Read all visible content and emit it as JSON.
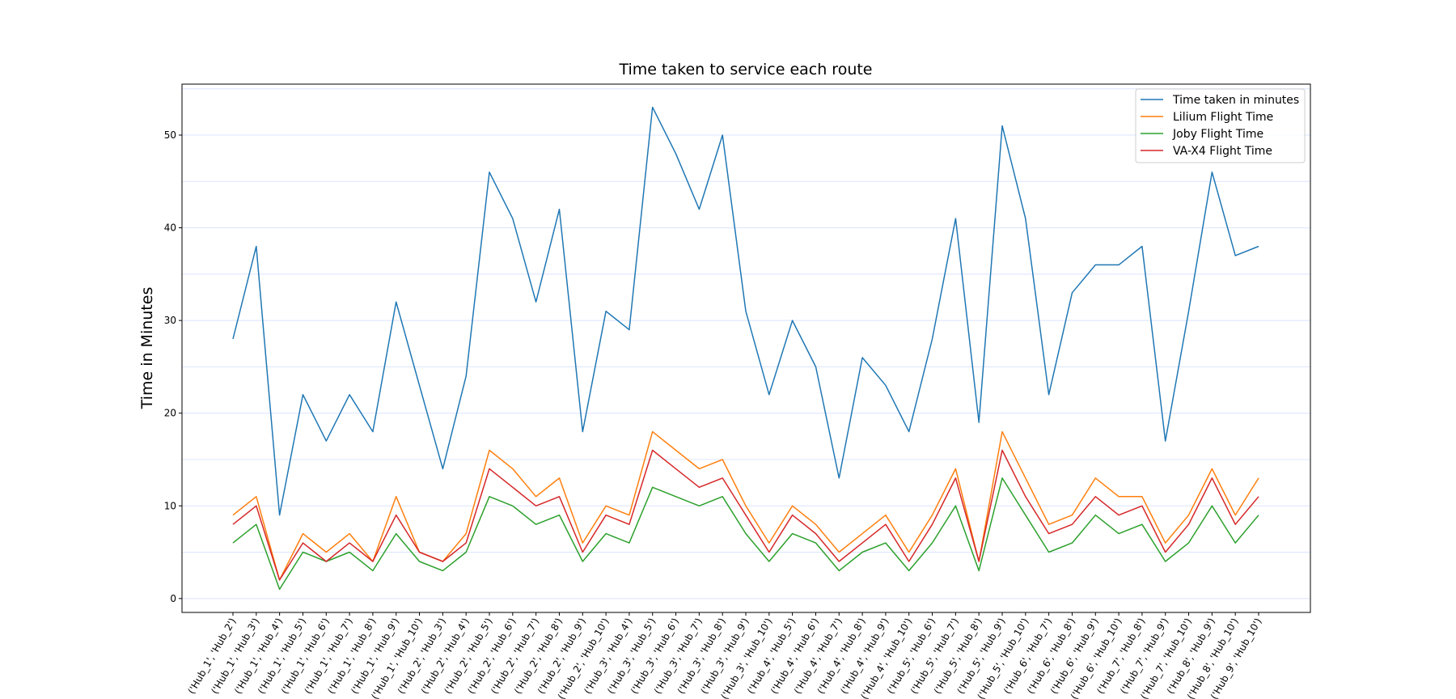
{
  "chart_data": {
    "type": "line",
    "title": "Time taken to service each route",
    "xlabel": "",
    "ylabel": "Time in Minutes",
    "ylim": [
      -1.5,
      55.5
    ],
    "yticks": [
      0,
      10,
      20,
      30,
      40,
      50
    ],
    "grid": "horizontal",
    "legend_position": "top-right",
    "categories": [
      "('Hub_1', 'Hub_2')",
      "('Hub_1', 'Hub_3')",
      "('Hub_1', 'Hub_4')",
      "('Hub_1', 'Hub_5')",
      "('Hub_1', 'Hub_6')",
      "('Hub_1', 'Hub_7')",
      "('Hub_1', 'Hub_8')",
      "('Hub_1', 'Hub_9')",
      "('Hub_1', 'Hub_10')",
      "('Hub_2', 'Hub_3')",
      "('Hub_2', 'Hub_4')",
      "('Hub_2', 'Hub_5')",
      "('Hub_2', 'Hub_6')",
      "('Hub_2', 'Hub_7')",
      "('Hub_2', 'Hub_8')",
      "('Hub_2', 'Hub_9')",
      "('Hub_2', 'Hub_10')",
      "('Hub_3', 'Hub_4')",
      "('Hub_3', 'Hub_5')",
      "('Hub_3', 'Hub_6')",
      "('Hub_3', 'Hub_7')",
      "('Hub_3', 'Hub_8')",
      "('Hub_3', 'Hub_9')",
      "('Hub_3', 'Hub_10')",
      "('Hub_4', 'Hub_5')",
      "('Hub_4', 'Hub_6')",
      "('Hub_4', 'Hub_7')",
      "('Hub_4', 'Hub_8')",
      "('Hub_4', 'Hub_9')",
      "('Hub_4', 'Hub_10')",
      "('Hub_5', 'Hub_6')",
      "('Hub_5', 'Hub_7')",
      "('Hub_5', 'Hub_8')",
      "('Hub_5', 'Hub_9')",
      "('Hub_5', 'Hub_10')",
      "('Hub_6', 'Hub_7')",
      "('Hub_6', 'Hub_8')",
      "('Hub_6', 'Hub_9')",
      "('Hub_6', 'Hub_10')",
      "('Hub_7', 'Hub_8')",
      "('Hub_7', 'Hub_9')",
      "('Hub_7', 'Hub_10')",
      "('Hub_8', 'Hub_9')",
      "('Hub_8', 'Hub_10')",
      "('Hub_9', 'Hub_10')"
    ],
    "series": [
      {
        "name": "Time taken in minutes",
        "color": "#1f77b4",
        "values": [
          28,
          38,
          9,
          22,
          17,
          22,
          18,
          32,
          23,
          14,
          24,
          46,
          41,
          32,
          42,
          18,
          31,
          29,
          53,
          48,
          42,
          50,
          31,
          22,
          30,
          25,
          13,
          26,
          23,
          18,
          28,
          41,
          19,
          51,
          41,
          22,
          33,
          36,
          36,
          38,
          17,
          31,
          46,
          37,
          38
        ]
      },
      {
        "name": "Lilium Flight Time",
        "color": "#ff7f0e",
        "values": [
          9,
          11,
          2,
          7,
          5,
          7,
          4,
          11,
          5,
          4,
          7,
          16,
          14,
          11,
          13,
          6,
          10,
          9,
          18,
          16,
          14,
          15,
          10,
          6,
          10,
          8,
          5,
          7,
          9,
          5,
          9,
          14,
          4,
          18,
          13,
          8,
          9,
          13,
          11,
          11,
          6,
          9,
          14,
          9,
          13
        ]
      },
      {
        "name": "Joby Flight Time",
        "color": "#2ca02c",
        "values": [
          6,
          8,
          1,
          5,
          4,
          5,
          3,
          7,
          4,
          3,
          5,
          11,
          10,
          8,
          9,
          4,
          7,
          6,
          12,
          11,
          10,
          11,
          7,
          4,
          7,
          6,
          3,
          5,
          6,
          3,
          6,
          10,
          3,
          13,
          9,
          5,
          6,
          9,
          7,
          8,
          4,
          6,
          10,
          6,
          9
        ]
      },
      {
        "name": "VA-X4 Flight Time",
        "color": "#d62728",
        "values": [
          8,
          10,
          2,
          6,
          4,
          6,
          4,
          9,
          5,
          4,
          6,
          14,
          12,
          10,
          11,
          5,
          9,
          8,
          16,
          14,
          12,
          13,
          9,
          5,
          9,
          7,
          4,
          6,
          8,
          4,
          8,
          13,
          4,
          16,
          11,
          7,
          8,
          11,
          9,
          10,
          5,
          8,
          13,
          8,
          11
        ]
      }
    ]
  }
}
